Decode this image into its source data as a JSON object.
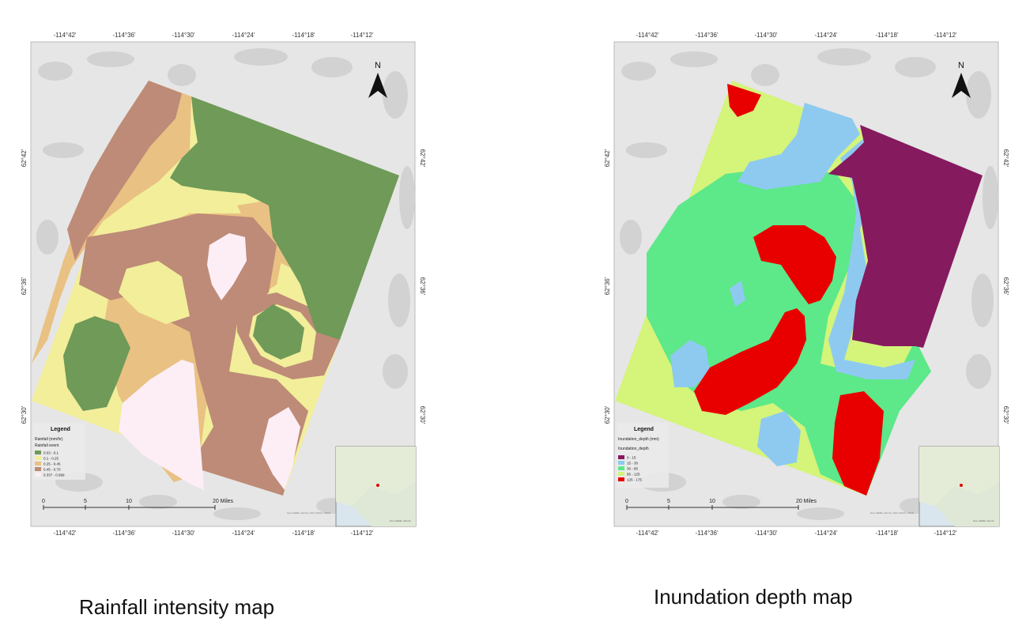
{
  "maps": [
    {
      "id": "rainfall",
      "caption": "Rainfall intensity map",
      "lon_ticks": [
        "-114°42'",
        "-114°36'",
        "-114°30'",
        "-114°24'",
        "-114°18'",
        "-114°12'"
      ],
      "lat_ticks": [
        "62°42'",
        "62°36'",
        "62°30'"
      ],
      "north_label": "N",
      "legend": {
        "title": "Legend",
        "layer": "Rainfall (mm/hr)",
        "field": "Rainfall event",
        "items": [
          {
            "label": "0.03 - 0.1",
            "color": "#6f9a58"
          },
          {
            "label": "0.1 - 0.25",
            "color": "#f2ee9a"
          },
          {
            "label": "0.25 - 0.45",
            "color": "#e9c183"
          },
          {
            "label": "0.45 - 0.70",
            "color": "#bd8b77"
          },
          {
            "label": "0.337 - 0.999",
            "color": "#fdeef6"
          }
        ]
      },
      "scale_labels": [
        "0",
        "5",
        "10",
        "20 Miles"
      ],
      "attribution": "Esri, HERE, Garmin, FAO, NOAA, USGS",
      "inset_attribution": "Esri, HERE, Garmin"
    },
    {
      "id": "inundation",
      "caption": "Inundation depth map",
      "lon_ticks": [
        "-114°42'",
        "-114°36'",
        "-114°30'",
        "-114°24'",
        "-114°18'",
        "-114°12'"
      ],
      "lat_ticks": [
        "62°42'",
        "62°36'",
        "62°30'"
      ],
      "north_label": "N",
      "legend": {
        "title": "Legend",
        "layer": "Inundation_depth (mm)",
        "field": "Inundation_depth",
        "items": [
          {
            "label": "0 - 15",
            "color": "#851a5e"
          },
          {
            "label": "15 - 30",
            "color": "#8ecaf0"
          },
          {
            "label": "30 - 85",
            "color": "#5de889"
          },
          {
            "label": "85 - 125",
            "color": "#d4f47a"
          },
          {
            "label": "125 - 175",
            "color": "#e80000"
          }
        ]
      },
      "scale_labels": [
        "0",
        "5",
        "10",
        "20 Miles"
      ],
      "attribution": "Esri, HERE, Garmin, FAO, NOAA, USGS",
      "inset_attribution": "Esri, HERE, Garmin"
    }
  ]
}
